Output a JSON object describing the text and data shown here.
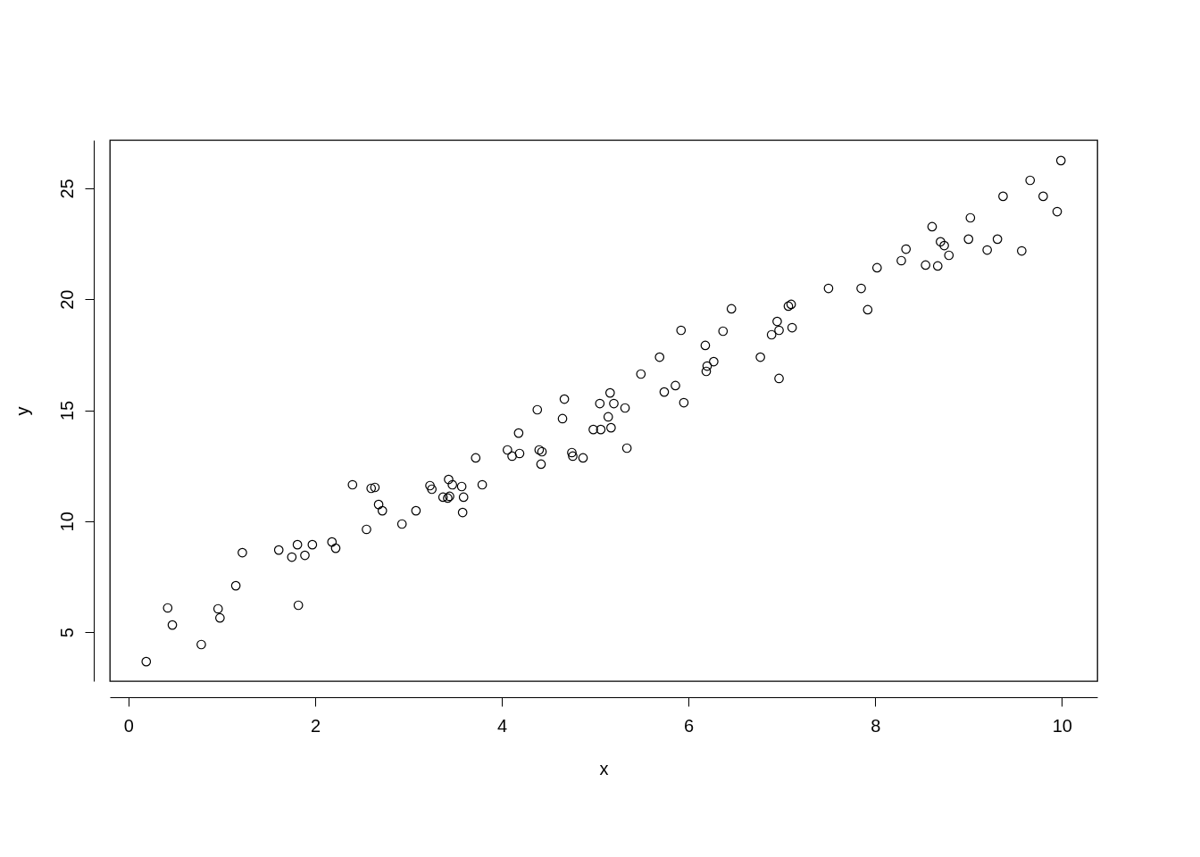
{
  "chart_data": {
    "type": "scatter",
    "xlabel": "x",
    "ylabel": "y",
    "xlim": [
      -0.2,
      10.38
    ],
    "ylim": [
      2.79,
      27.17
    ],
    "xticks": [
      0,
      2,
      4,
      6,
      8,
      10
    ],
    "yticks": [
      5,
      10,
      15,
      20,
      25
    ],
    "grid": false,
    "marker": "circle",
    "series": [
      {
        "color": "#000000",
        "x": [
          0.19,
          0.42,
          0.47,
          0.78,
          0.96,
          0.98,
          1.15,
          1.22,
          1.61,
          1.75,
          1.81,
          1.82,
          1.89,
          1.97,
          2.18,
          2.22,
          2.4,
          2.55,
          2.6,
          2.64,
          2.68,
          2.72,
          2.93,
          3.08,
          3.23,
          3.25,
          3.37,
          3.42,
          3.43,
          3.44,
          3.47,
          3.57,
          3.58,
          3.59,
          3.72,
          3.79,
          4.06,
          4.11,
          4.18,
          4.19,
          4.38,
          4.4,
          4.43,
          4.42,
          4.65,
          4.67,
          4.75,
          4.76,
          4.87,
          4.98,
          5.05,
          5.06,
          5.14,
          5.16,
          5.17,
          5.2,
          5.32,
          5.34,
          5.49,
          5.69,
          5.74,
          5.86,
          5.92,
          5.95,
          6.18,
          6.19,
          6.2,
          6.27,
          6.37,
          6.46,
          6.77,
          6.89,
          6.95,
          6.97,
          6.97,
          7.07,
          7.1,
          7.11,
          7.5,
          7.85,
          7.92,
          8.02,
          8.28,
          8.33,
          8.54,
          8.61,
          8.67,
          8.7,
          8.74,
          8.79,
          9.0,
          9.02,
          9.2,
          9.31,
          9.37,
          9.57,
          9.66,
          9.8,
          9.95,
          9.99
        ],
        "values": [
          3.67,
          6.09,
          5.32,
          4.44,
          6.05,
          5.64,
          7.09,
          8.58,
          8.7,
          8.38,
          8.94,
          6.21,
          8.46,
          8.94,
          9.06,
          8.78,
          11.64,
          9.63,
          11.48,
          11.52,
          10.75,
          10.47,
          9.87,
          10.47,
          11.6,
          11.44,
          11.08,
          11.04,
          11.88,
          11.12,
          11.64,
          11.56,
          10.39,
          11.08,
          12.85,
          11.64,
          13.21,
          12.93,
          13.97,
          13.05,
          15.02,
          13.21,
          13.13,
          12.57,
          14.62,
          15.5,
          13.09,
          12.93,
          12.85,
          14.13,
          15.3,
          14.13,
          14.7,
          15.78,
          14.21,
          15.3,
          15.1,
          13.29,
          16.63,
          17.39,
          15.82,
          16.11,
          18.6,
          15.34,
          17.92,
          16.75,
          16.99,
          17.19,
          18.56,
          19.57,
          17.39,
          18.4,
          19.0,
          18.6,
          16.43,
          19.69,
          19.77,
          18.72,
          20.49,
          20.49,
          19.53,
          21.42,
          21.74,
          22.26,
          21.54,
          23.27,
          21.5,
          22.59,
          22.42,
          21.98,
          22.71,
          23.67,
          22.22,
          22.71,
          24.64,
          22.18,
          25.36,
          24.64,
          23.95,
          26.25
        ]
      }
    ]
  }
}
